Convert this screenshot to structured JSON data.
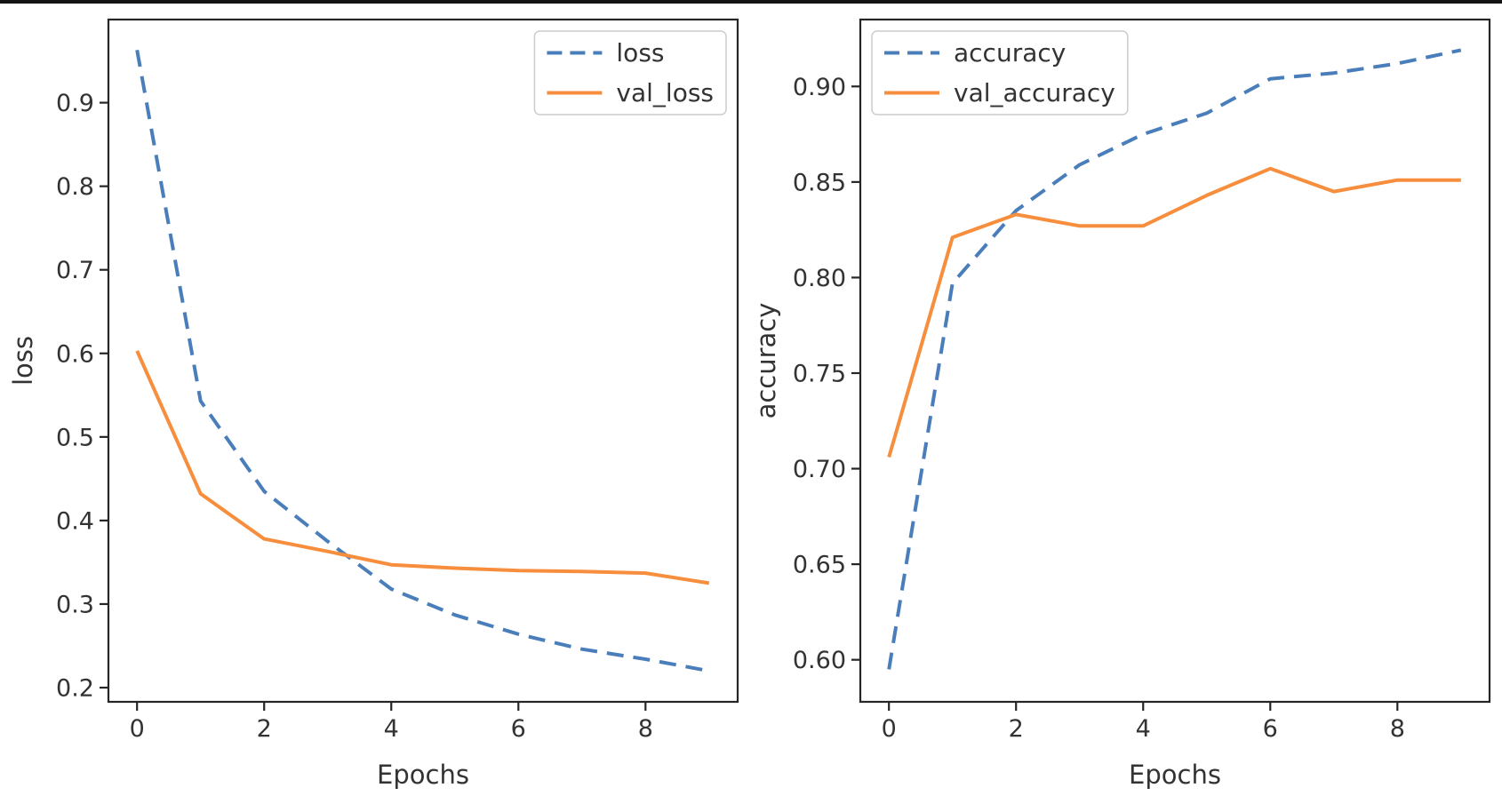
{
  "figure": {
    "background": "#ffffff",
    "top_edge_color": "#141414",
    "axis_color": "#262626",
    "text_color": "#333333",
    "series_colors": {
      "train": "#4a7ebb",
      "validation": "#f78e3d"
    }
  },
  "chart_data": [
    {
      "type": "line",
      "title": "",
      "xlabel": "Epochs",
      "ylabel": "loss",
      "grid": false,
      "legend_position": "upper-right",
      "x": [
        0,
        1,
        2,
        3,
        4,
        5,
        6,
        7,
        8,
        9
      ],
      "xlim": [
        -0.45,
        9.45
      ],
      "ylim": [
        0.183,
        0.9995
      ],
      "xtick_values": [
        0,
        2,
        4,
        6,
        8
      ],
      "xtick_labels": [
        "0",
        "2",
        "4",
        "6",
        "8"
      ],
      "ytick_values": [
        0.2,
        0.3,
        0.4,
        0.5,
        0.6,
        0.7,
        0.8,
        0.9
      ],
      "ytick_labels": [
        "0.2",
        "0.3",
        "0.4",
        "0.5",
        "0.6",
        "0.7",
        "0.8",
        "0.9"
      ],
      "series": [
        {
          "name": "loss",
          "color": "#4a7ebb",
          "style": "dashed",
          "values": [
            0.963,
            0.543,
            0.435,
            0.375,
            0.318,
            0.287,
            0.264,
            0.246,
            0.234,
            0.22
          ]
        },
        {
          "name": "val_loss",
          "color": "#f78e3d",
          "style": "solid",
          "values": [
            0.603,
            0.432,
            0.378,
            0.363,
            0.347,
            0.343,
            0.34,
            0.339,
            0.337,
            0.325
          ]
        }
      ]
    },
    {
      "type": "line",
      "title": "",
      "xlabel": "Epochs",
      "ylabel": "accuracy",
      "grid": false,
      "legend_position": "upper-left",
      "x": [
        0,
        1,
        2,
        3,
        4,
        5,
        6,
        7,
        8,
        9
      ],
      "xlim": [
        -0.45,
        9.45
      ],
      "ylim": [
        0.578,
        0.935
      ],
      "xtick_values": [
        0,
        2,
        4,
        6,
        8
      ],
      "xtick_labels": [
        "0",
        "2",
        "4",
        "6",
        "8"
      ],
      "ytick_values": [
        0.6,
        0.65,
        0.7,
        0.75,
        0.8,
        0.85,
        0.9
      ],
      "ytick_labels": [
        "0.60",
        "0.65",
        "0.70",
        "0.75",
        "0.80",
        "0.85",
        "0.90"
      ],
      "series": [
        {
          "name": "accuracy",
          "color": "#4a7ebb",
          "style": "dashed",
          "values": [
            0.595,
            0.797,
            0.835,
            0.859,
            0.875,
            0.886,
            0.904,
            0.907,
            0.912,
            0.919
          ]
        },
        {
          "name": "val_accuracy",
          "color": "#f78e3d",
          "style": "solid",
          "values": [
            0.706,
            0.821,
            0.833,
            0.827,
            0.827,
            0.843,
            0.857,
            0.845,
            0.851,
            0.851
          ]
        }
      ]
    }
  ]
}
